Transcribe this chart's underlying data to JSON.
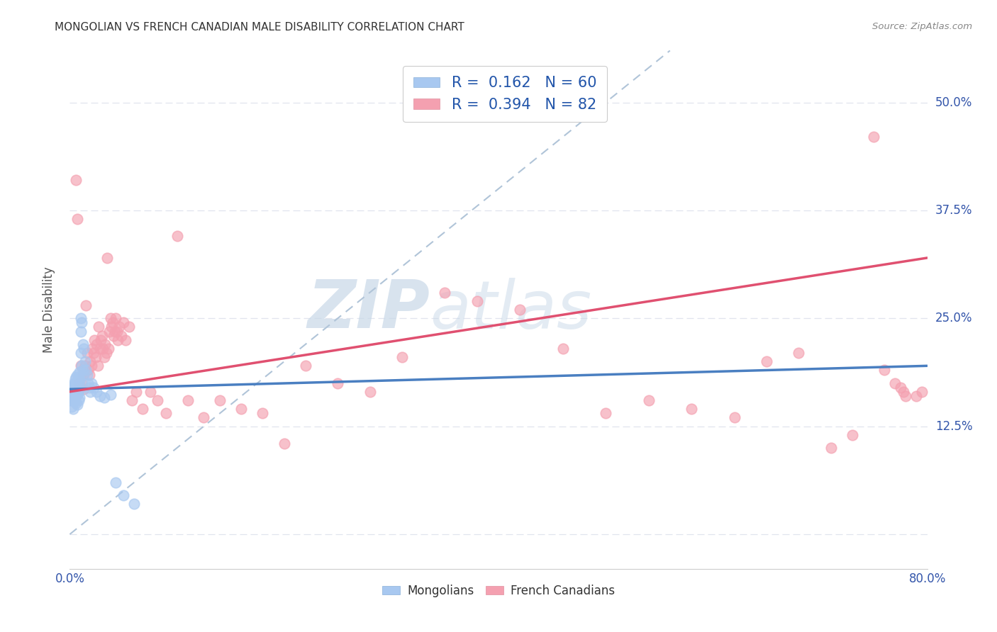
{
  "title": "MONGOLIAN VS FRENCH CANADIAN MALE DISABILITY CORRELATION CHART",
  "source": "Source: ZipAtlas.com",
  "ylabel": "Male Disability",
  "xlim": [
    0.0,
    0.8
  ],
  "ylim": [
    -0.04,
    0.56
  ],
  "yticks": [
    0.0,
    0.125,
    0.25,
    0.375,
    0.5
  ],
  "ytick_labels": [
    "",
    "12.5%",
    "25.0%",
    "37.5%",
    "50.0%"
  ],
  "xticks": [
    0.0,
    0.1,
    0.2,
    0.3,
    0.4,
    0.5,
    0.6,
    0.7,
    0.8
  ],
  "xtick_labels": [
    "0.0%",
    "",
    "",
    "",
    "",
    "",
    "",
    "",
    "80.0%"
  ],
  "mongolian_R": 0.162,
  "mongolian_N": 60,
  "french_canadian_R": 0.394,
  "french_canadian_N": 82,
  "mongolian_color": "#a8c8f0",
  "french_canadian_color": "#f4a0b0",
  "mongolian_line_color": "#4a7fc1",
  "french_canadian_line_color": "#e05070",
  "diagonal_color": "#b0c4d8",
  "grid_color": "#e0e4ee",
  "background_color": "#ffffff",
  "title_color": "#333333",
  "legend_text_color": "#2255aa",
  "watermark_color": "#c8d8e8",
  "mongolian_x": [
    0.001,
    0.001,
    0.001,
    0.002,
    0.002,
    0.002,
    0.002,
    0.003,
    0.003,
    0.003,
    0.003,
    0.004,
    0.004,
    0.004,
    0.005,
    0.005,
    0.005,
    0.005,
    0.006,
    0.006,
    0.006,
    0.006,
    0.006,
    0.007,
    0.007,
    0.007,
    0.007,
    0.007,
    0.008,
    0.008,
    0.008,
    0.008,
    0.009,
    0.009,
    0.009,
    0.009,
    0.01,
    0.01,
    0.01,
    0.011,
    0.011,
    0.012,
    0.012,
    0.013,
    0.013,
    0.014,
    0.015,
    0.016,
    0.017,
    0.018,
    0.019,
    0.02,
    0.022,
    0.025,
    0.028,
    0.032,
    0.038,
    0.043,
    0.05,
    0.06
  ],
  "mongolian_y": [
    0.17,
    0.165,
    0.155,
    0.168,
    0.162,
    0.158,
    0.148,
    0.172,
    0.165,
    0.158,
    0.145,
    0.175,
    0.168,
    0.155,
    0.18,
    0.172,
    0.165,
    0.155,
    0.182,
    0.175,
    0.168,
    0.162,
    0.152,
    0.185,
    0.178,
    0.17,
    0.162,
    0.15,
    0.182,
    0.175,
    0.165,
    0.155,
    0.188,
    0.178,
    0.168,
    0.158,
    0.25,
    0.235,
    0.21,
    0.245,
    0.195,
    0.22,
    0.19,
    0.215,
    0.185,
    0.2,
    0.19,
    0.185,
    0.175,
    0.17,
    0.165,
    0.175,
    0.17,
    0.165,
    0.16,
    0.158,
    0.162,
    0.06,
    0.045,
    0.035
  ],
  "french_canadian_x": [
    0.006,
    0.007,
    0.008,
    0.009,
    0.01,
    0.011,
    0.012,
    0.013,
    0.014,
    0.015,
    0.016,
    0.017,
    0.018,
    0.019,
    0.02,
    0.021,
    0.022,
    0.023,
    0.024,
    0.025,
    0.026,
    0.027,
    0.028,
    0.029,
    0.03,
    0.031,
    0.032,
    0.033,
    0.034,
    0.035,
    0.036,
    0.037,
    0.038,
    0.039,
    0.04,
    0.041,
    0.042,
    0.043,
    0.044,
    0.045,
    0.046,
    0.048,
    0.05,
    0.052,
    0.055,
    0.058,
    0.062,
    0.068,
    0.075,
    0.082,
    0.09,
    0.1,
    0.11,
    0.125,
    0.14,
    0.16,
    0.18,
    0.2,
    0.22,
    0.25,
    0.28,
    0.31,
    0.35,
    0.38,
    0.42,
    0.46,
    0.5,
    0.54,
    0.58,
    0.62,
    0.65,
    0.68,
    0.71,
    0.73,
    0.75,
    0.76,
    0.77,
    0.775,
    0.778,
    0.78,
    0.79,
    0.795
  ],
  "french_canadian_y": [
    0.41,
    0.365,
    0.175,
    0.168,
    0.195,
    0.175,
    0.185,
    0.168,
    0.195,
    0.265,
    0.21,
    0.19,
    0.185,
    0.2,
    0.195,
    0.215,
    0.21,
    0.225,
    0.205,
    0.22,
    0.195,
    0.24,
    0.215,
    0.225,
    0.23,
    0.215,
    0.205,
    0.22,
    0.21,
    0.32,
    0.215,
    0.235,
    0.25,
    0.24,
    0.245,
    0.23,
    0.235,
    0.25,
    0.235,
    0.225,
    0.24,
    0.23,
    0.245,
    0.225,
    0.24,
    0.155,
    0.165,
    0.145,
    0.165,
    0.155,
    0.14,
    0.345,
    0.155,
    0.135,
    0.155,
    0.145,
    0.14,
    0.105,
    0.195,
    0.175,
    0.165,
    0.205,
    0.28,
    0.27,
    0.26,
    0.215,
    0.14,
    0.155,
    0.145,
    0.135,
    0.2,
    0.21,
    0.1,
    0.115,
    0.46,
    0.19,
    0.175,
    0.17,
    0.165,
    0.16,
    0.16,
    0.165
  ]
}
